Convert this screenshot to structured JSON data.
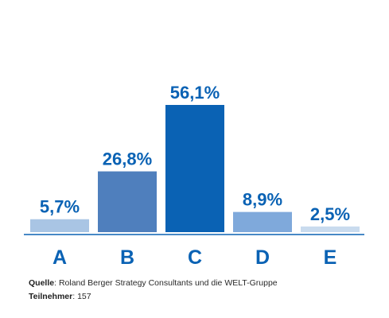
{
  "chart_data": {
    "type": "bar",
    "categories": [
      "A",
      "B",
      "C",
      "D",
      "E"
    ],
    "values": [
      5.7,
      26.8,
      56.1,
      8.9,
      2.5
    ],
    "value_labels": [
      "5,7%",
      "26,8%",
      "56,1%",
      "8,9%",
      "2,5%"
    ],
    "colors": [
      "#a9c5e4",
      "#4f7fbd",
      "#0a62b4",
      "#7fa9db",
      "#c9dbee"
    ],
    "label_color": "#0a62b4",
    "ylim": [
      0,
      56.1
    ],
    "grid": false
  },
  "footer": {
    "source_label": "Quelle",
    "source_text": ": Roland Berger Strategy Consultants und die WELT-Gruppe",
    "participants_label": "Teilnehmer",
    "participants_text": ": 157"
  }
}
